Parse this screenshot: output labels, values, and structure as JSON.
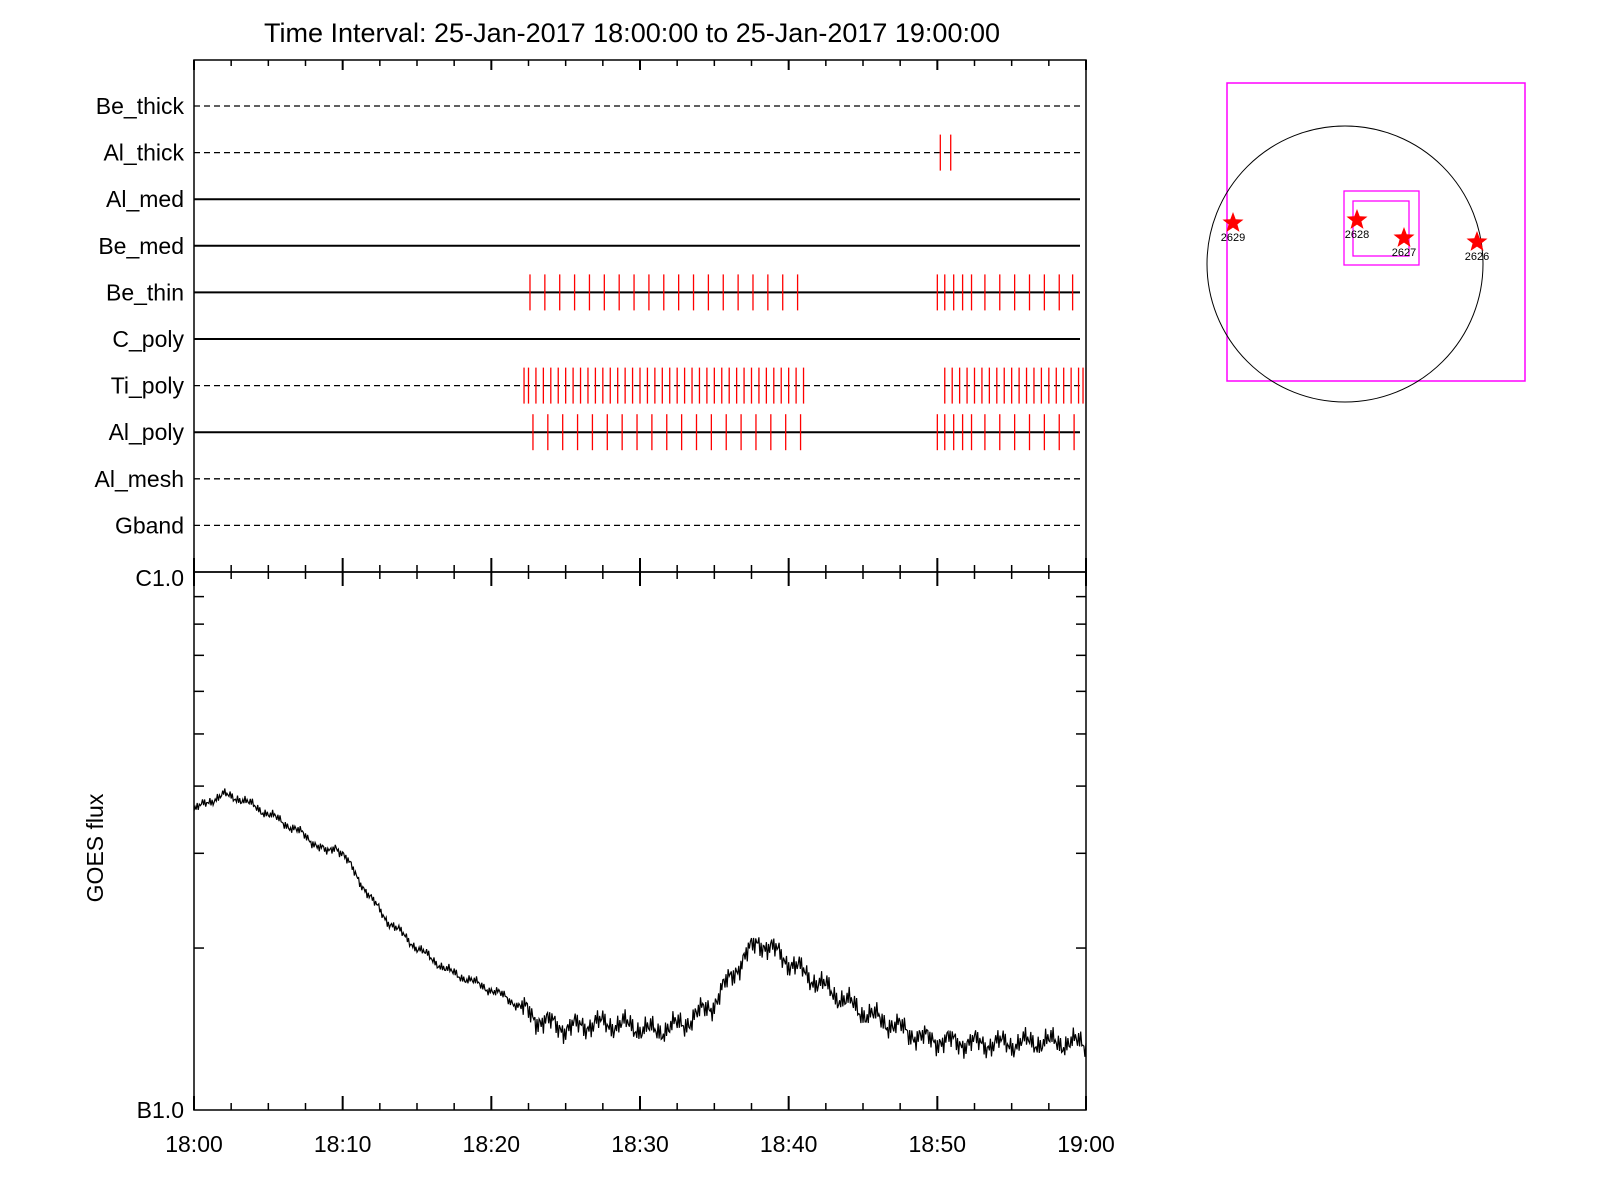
{
  "title": "Time Interval: 25-Jan-2017 18:00:00 to 25-Jan-2017 19:00:00",
  "colors": {
    "axis": "#000000",
    "marker": "#ff0000",
    "fov": "#ff00ff",
    "curve": "#000000"
  },
  "chart_data": [
    {
      "type": "timeline",
      "x_range": [
        "18:00",
        "19:00"
      ],
      "x_unit": "minutes after 18:00",
      "rows": [
        {
          "label": "Be_thick",
          "line": "dashed",
          "marks": []
        },
        {
          "label": "Al_thick",
          "line": "dashed",
          "marks": [
            50.2,
            50.9
          ]
        },
        {
          "label": "Al_med",
          "line": "solid",
          "marks": []
        },
        {
          "label": "Be_med",
          "line": "solid",
          "marks": []
        },
        {
          "label": "Be_thin",
          "line": "solid",
          "marks": [
            22.6,
            23.6,
            24.6,
            25.6,
            26.6,
            27.6,
            28.6,
            29.6,
            30.6,
            31.6,
            32.6,
            33.6,
            34.6,
            35.6,
            36.6,
            37.6,
            38.6,
            39.6,
            40.6,
            50.0,
            50.5,
            51.1,
            51.7,
            52.3,
            53.2,
            54.2,
            55.2,
            56.2,
            57.2,
            58.2,
            59.1
          ]
        },
        {
          "label": "C_poly",
          "line": "solid",
          "marks": []
        },
        {
          "label": "Ti_poly",
          "line": "dashed",
          "marks": [
            22.2,
            22.5,
            23.0,
            23.5,
            24.0,
            24.5,
            25.0,
            25.5,
            26.0,
            26.5,
            27.0,
            27.5,
            28.0,
            28.5,
            29.0,
            29.5,
            30.0,
            30.5,
            31.0,
            31.5,
            32.0,
            32.5,
            33.0,
            33.5,
            34.0,
            34.5,
            35.0,
            35.5,
            36.0,
            36.5,
            37.0,
            37.5,
            38.0,
            38.5,
            39.0,
            39.5,
            40.0,
            40.5,
            41.0,
            50.5,
            51.0,
            51.5,
            52.0,
            52.5,
            53.0,
            53.5,
            54.0,
            54.5,
            55.0,
            55.5,
            56.0,
            56.5,
            57.0,
            57.5,
            58.0,
            58.5,
            59.0,
            59.5,
            59.8
          ]
        },
        {
          "label": "Al_poly",
          "line": "solid",
          "marks": [
            22.8,
            23.8,
            24.8,
            25.8,
            26.8,
            27.8,
            28.8,
            29.8,
            30.8,
            31.8,
            32.8,
            33.8,
            34.8,
            35.8,
            36.8,
            37.8,
            38.8,
            39.8,
            40.8,
            50.0,
            50.5,
            51.1,
            51.7,
            52.3,
            53.2,
            54.2,
            55.2,
            56.2,
            57.2,
            58.2,
            59.2
          ]
        },
        {
          "label": "Al_mesh",
          "line": "dashed",
          "marks": []
        },
        {
          "label": "Gband",
          "line": "dashed",
          "marks": []
        }
      ]
    },
    {
      "type": "line",
      "ylabel": "GOES flux",
      "y_scale": "log",
      "y_ticks": [
        "C1.0",
        "B1.0"
      ],
      "y_range": [
        "1.0e-7",
        "1.0e-6"
      ],
      "x_tick_labels": [
        "18:00",
        "18:10",
        "18:20",
        "18:30",
        "18:40",
        "18:50",
        "19:00"
      ],
      "series": [
        {
          "x_minutes": [
            0,
            1,
            2,
            3,
            5,
            7,
            9,
            9.5,
            10,
            11,
            12,
            13,
            15,
            17,
            19,
            21,
            23,
            25,
            27,
            29,
            31,
            33,
            35,
            36,
            37,
            38,
            39,
            41,
            43,
            45,
            47,
            49,
            51,
            53,
            55,
            57,
            60
          ],
          "y_flux_e7": [
            3.6,
            3.75,
            3.85,
            3.8,
            3.55,
            3.3,
            3.0,
            3.1,
            3.0,
            2.7,
            2.45,
            2.25,
            2.0,
            1.82,
            1.72,
            1.62,
            1.48,
            1.42,
            1.45,
            1.44,
            1.4,
            1.45,
            1.58,
            1.75,
            1.92,
            2.06,
            1.98,
            1.8,
            1.65,
            1.52,
            1.44,
            1.36,
            1.34,
            1.33,
            1.33,
            1.34,
            1.33
          ]
        }
      ]
    },
    {
      "type": "scatter",
      "points": [
        {
          "label": "2629"
        },
        {
          "label": "2628"
        },
        {
          "label": "2627"
        },
        {
          "label": "2626"
        }
      ]
    }
  ]
}
